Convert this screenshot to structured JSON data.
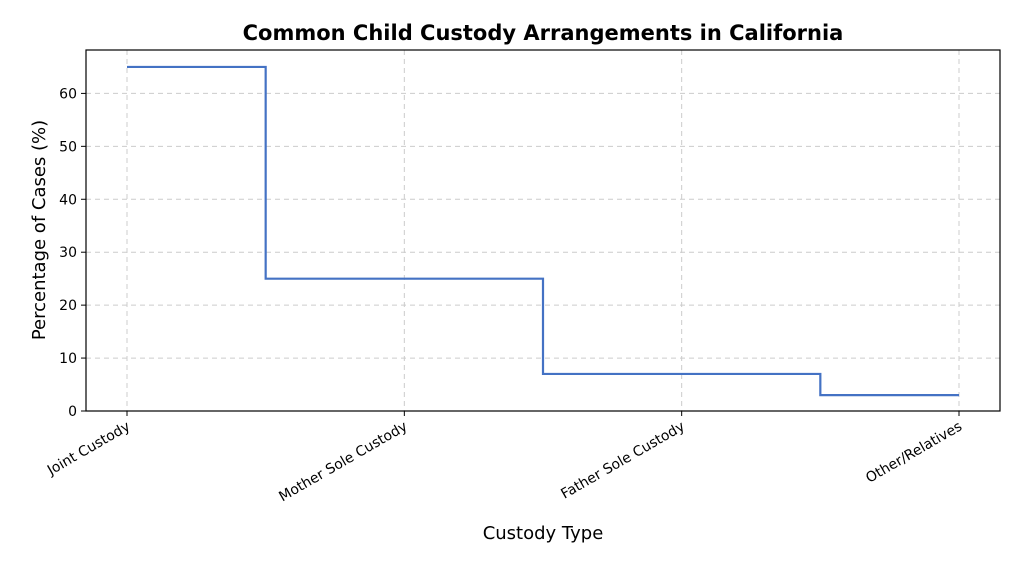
{
  "chart_data": {
    "type": "line",
    "drawstyle": "steps-mid",
    "title": "Common Child Custody Arrangements in California",
    "xlabel": "Custody Type",
    "ylabel": "Percentage of Cases (%)",
    "categories": [
      "Joint Custody",
      "Mother Sole Custody",
      "Father Sole Custody",
      "Other/Relatives"
    ],
    "values": [
      65,
      25,
      7,
      3
    ],
    "ylim": [
      0,
      68.2
    ],
    "yticks": [
      0,
      10,
      20,
      30,
      40,
      50,
      60
    ],
    "grid": true,
    "line_color": "#4472c4"
  }
}
